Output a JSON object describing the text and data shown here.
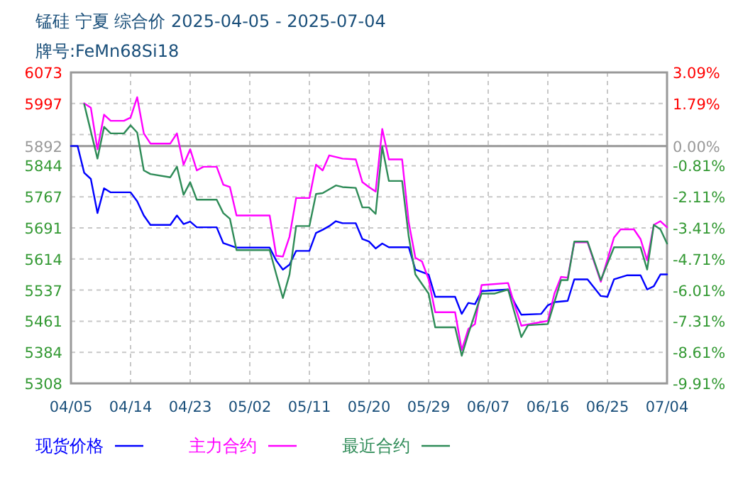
{
  "chart_data": {
    "type": "line",
    "title": "锰硅 宁夏 综合价 2025-04-05 - 2025-07-04",
    "subtitle": "牌号:FeMn68Si18",
    "xlim": [
      "2025-04-05",
      "2025-07-04"
    ],
    "xticks": [
      {
        "value": "2025-04-05",
        "label": "04/05"
      },
      {
        "value": "2025-04-14",
        "label": "04/14"
      },
      {
        "value": "2025-04-23",
        "label": "04/23"
      },
      {
        "value": "2025-05-02",
        "label": "05/02"
      },
      {
        "value": "2025-05-11",
        "label": "05/11"
      },
      {
        "value": "2025-05-20",
        "label": "05/20"
      },
      {
        "value": "2025-05-29",
        "label": "05/29"
      },
      {
        "value": "2025-06-07",
        "label": "06/07"
      },
      {
        "value": "2025-06-16",
        "label": "06/16"
      },
      {
        "value": "2025-06-25",
        "label": "06/25"
      },
      {
        "value": "2025-07-04",
        "label": "07/04"
      }
    ],
    "ylim": [
      5308,
      6073
    ],
    "yticks": [
      6073,
      {
        "value": 5996.5,
        "label": "5997"
      },
      {
        "value": 5920,
        "label": null
      },
      5892,
      {
        "value": 5843.5,
        "label": "5844"
      },
      5767,
      {
        "value": 5690.5,
        "label": "5691"
      },
      5614,
      {
        "value": 5537.5,
        "label": "5537"
      },
      5461,
      {
        "value": 5384.5,
        "label": "5384"
      },
      5308
    ],
    "y2lim": [
      -9.91,
      3.09
    ],
    "y2ticks": [
      {
        "value": 3.09,
        "label": "3.09%"
      },
      {
        "value": 1.79,
        "label": "1.79%"
      },
      {
        "value": 0,
        "label": "0.00%"
      },
      {
        "value": -0.81,
        "label": "-0.81%"
      },
      {
        "value": -2.11,
        "label": "-2.11%"
      },
      {
        "value": -3.41,
        "label": "-3.41%"
      },
      {
        "value": -4.71,
        "label": "-4.71%"
      },
      {
        "value": -6.01,
        "label": "-6.01%"
      },
      {
        "value": -7.31,
        "label": "-7.31%"
      },
      {
        "value": -8.61,
        "label": "-8.61%"
      },
      {
        "value": -9.91,
        "label": "-9.91%"
      }
    ],
    "ref_lines": [
      {
        "axis": "y",
        "value": 5892,
        "color": "#999999"
      }
    ],
    "grid": true,
    "legend": "bottom",
    "series": [
      {
        "name": "现货价格",
        "color": "#0000ff",
        "x": [
          "2025-04-05",
          "2025-04-06",
          "2025-04-07",
          "2025-04-08",
          "2025-04-09",
          "2025-04-10",
          "2025-04-11",
          "2025-04-14",
          "2025-04-15",
          "2025-04-16",
          "2025-04-17",
          "2025-04-20",
          "2025-04-21",
          "2025-04-22",
          "2025-04-23",
          "2025-04-24",
          "2025-04-27",
          "2025-04-28",
          "2025-04-30",
          "2025-05-05",
          "2025-05-06",
          "2025-05-07",
          "2025-05-08",
          "2025-05-09",
          "2025-05-11",
          "2025-05-12",
          "2025-05-13",
          "2025-05-14",
          "2025-05-15",
          "2025-05-16",
          "2025-05-18",
          "2025-05-19",
          "2025-05-20",
          "2025-05-21",
          "2025-05-22",
          "2025-05-23",
          "2025-05-26",
          "2025-05-27",
          "2025-05-29",
          "2025-05-30",
          "2025-06-02",
          "2025-06-03",
          "2025-06-04",
          "2025-06-05",
          "2025-06-06",
          "2025-06-10",
          "2025-06-11",
          "2025-06-12",
          "2025-06-15",
          "2025-06-16",
          "2025-06-17",
          "2025-06-19",
          "2025-06-20",
          "2025-06-22",
          "2025-06-24",
          "2025-06-25",
          "2025-06-26",
          "2025-06-28",
          "2025-06-30",
          "2025-07-01",
          "2025-07-02",
          "2025-07-03",
          "2025-07-04"
        ],
        "values": [
          5892,
          5892,
          5826,
          5811,
          5727,
          5788,
          5778,
          5778,
          5756,
          5721,
          5698,
          5698,
          5721,
          5700,
          5706,
          5692,
          5692,
          5653,
          5642,
          5642,
          5610,
          5588,
          5600,
          5634,
          5634,
          5678,
          5686,
          5695,
          5707,
          5702,
          5702,
          5663,
          5657,
          5640,
          5652,
          5643,
          5643,
          5588,
          5576,
          5521,
          5521,
          5479,
          5506,
          5503,
          5535,
          5539,
          5506,
          5477,
          5479,
          5500,
          5508,
          5511,
          5564,
          5564,
          5523,
          5521,
          5564,
          5574,
          5574,
          5539,
          5547,
          5576,
          5576
        ]
      },
      {
        "name": "主力合约",
        "color": "#ff00ff",
        "x": [
          "2025-04-07",
          "2025-04-08",
          "2025-04-09",
          "2025-04-10",
          "2025-04-11",
          "2025-04-13",
          "2025-04-14",
          "2025-04-15",
          "2025-04-16",
          "2025-04-17",
          "2025-04-20",
          "2025-04-21",
          "2025-04-22",
          "2025-04-23",
          "2025-04-24",
          "2025-04-25",
          "2025-04-27",
          "2025-04-28",
          "2025-04-29",
          "2025-04-30",
          "2025-05-05",
          "2025-05-06",
          "2025-05-07",
          "2025-05-08",
          "2025-05-09",
          "2025-05-11",
          "2025-05-12",
          "2025-05-13",
          "2025-05-14",
          "2025-05-16",
          "2025-05-18",
          "2025-05-19",
          "2025-05-20",
          "2025-05-21",
          "2025-05-22",
          "2025-05-23",
          "2025-05-25",
          "2025-05-26",
          "2025-05-27",
          "2025-05-28",
          "2025-05-29",
          "2025-05-30",
          "2025-06-02",
          "2025-06-03",
          "2025-06-04",
          "2025-06-05",
          "2025-06-06",
          "2025-06-10",
          "2025-06-11",
          "2025-06-12",
          "2025-06-16",
          "2025-06-17",
          "2025-06-18",
          "2025-06-19",
          "2025-06-20",
          "2025-06-22",
          "2025-06-24",
          "2025-06-26",
          "2025-06-27",
          "2025-06-29",
          "2025-06-30",
          "2025-07-01",
          "2025-07-02",
          "2025-07-03",
          "2025-07-04"
        ],
        "values": [
          5997,
          5986,
          5884,
          5969,
          5954,
          5954,
          5962,
          6012,
          5923,
          5898,
          5898,
          5923,
          5846,
          5884,
          5832,
          5841,
          5841,
          5797,
          5791,
          5721,
          5721,
          5622,
          5620,
          5669,
          5764,
          5764,
          5846,
          5832,
          5869,
          5861,
          5859,
          5803,
          5791,
          5780,
          5934,
          5859,
          5859,
          5704,
          5617,
          5608,
          5564,
          5483,
          5483,
          5390,
          5442,
          5454,
          5550,
          5555,
          5500,
          5450,
          5462,
          5529,
          5570,
          5568,
          5655,
          5655,
          5558,
          5667,
          5687,
          5687,
          5663,
          5611,
          5698,
          5707,
          5692
        ]
      },
      {
        "name": "最近合约",
        "color": "#2e8b57",
        "x": [
          "2025-04-07",
          "2025-04-09",
          "2025-04-10",
          "2025-04-11",
          "2025-04-13",
          "2025-04-14",
          "2025-04-15",
          "2025-04-16",
          "2025-04-17",
          "2025-04-20",
          "2025-04-21",
          "2025-04-22",
          "2025-04-23",
          "2025-04-24",
          "2025-04-27",
          "2025-04-28",
          "2025-04-29",
          "2025-04-30",
          "2025-05-05",
          "2025-05-06",
          "2025-05-07",
          "2025-05-08",
          "2025-05-09",
          "2025-05-11",
          "2025-05-12",
          "2025-05-13",
          "2025-05-15",
          "2025-05-16",
          "2025-05-18",
          "2025-05-19",
          "2025-05-20",
          "2025-05-21",
          "2025-05-22",
          "2025-05-23",
          "2025-05-25",
          "2025-05-26",
          "2025-05-27",
          "2025-05-29",
          "2025-05-30",
          "2025-06-02",
          "2025-06-03",
          "2025-06-04",
          "2025-06-06",
          "2025-06-08",
          "2025-06-10",
          "2025-06-12",
          "2025-06-13",
          "2025-06-16",
          "2025-06-18",
          "2025-06-19",
          "2025-06-20",
          "2025-06-22",
          "2025-06-24",
          "2025-06-26",
          "2025-06-30",
          "2025-07-01",
          "2025-07-02",
          "2025-07-03",
          "2025-07-04"
        ],
        "values": [
          5995,
          5861,
          5939,
          5923,
          5923,
          5943,
          5925,
          5832,
          5823,
          5815,
          5841,
          5772,
          5803,
          5760,
          5760,
          5727,
          5713,
          5636,
          5636,
          5576,
          5518,
          5576,
          5695,
          5695,
          5774,
          5776,
          5795,
          5791,
          5789,
          5741,
          5741,
          5725,
          5890,
          5806,
          5806,
          5669,
          5576,
          5529,
          5446,
          5446,
          5376,
          5430,
          5529,
          5529,
          5539,
          5422,
          5451,
          5454,
          5562,
          5562,
          5657,
          5657,
          5562,
          5643,
          5643,
          5588,
          5698,
          5687,
          5652
        ]
      }
    ]
  }
}
